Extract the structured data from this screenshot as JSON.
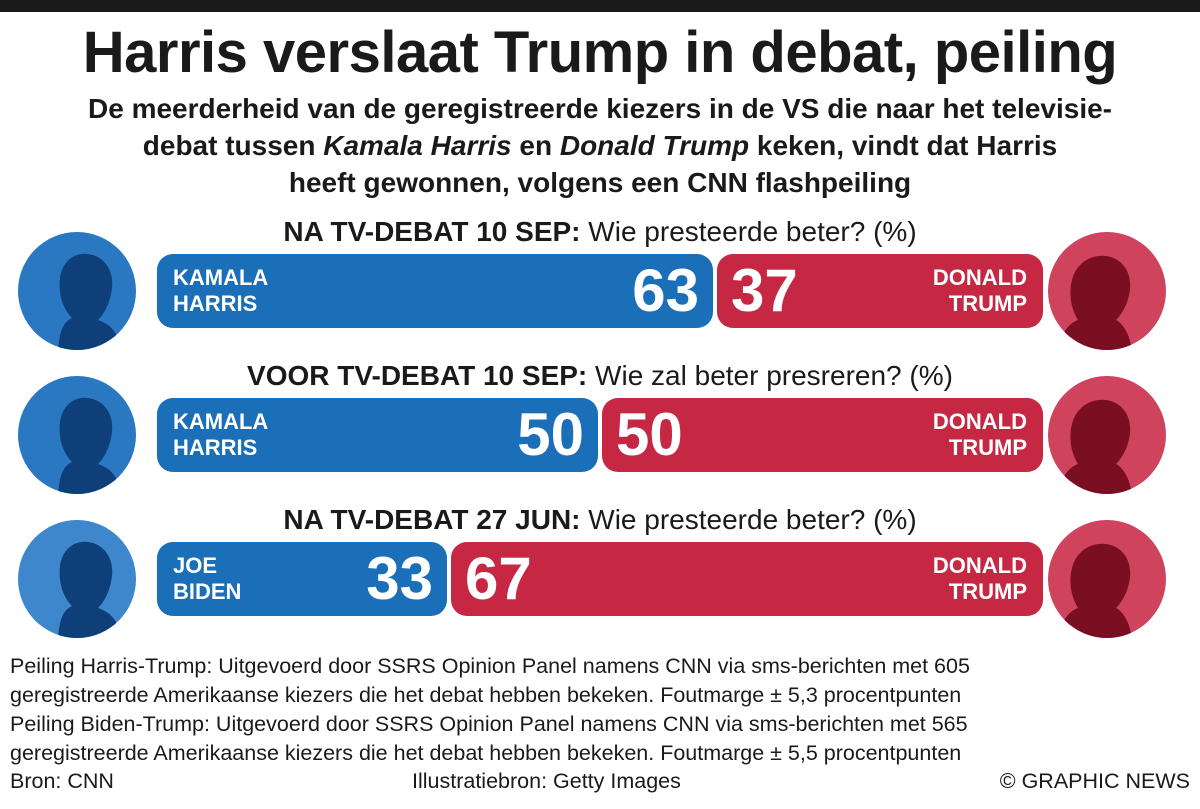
{
  "header": {
    "title": "Harris verslaat Trump in debat, peiling",
    "subtitle_line1": "De meerderheid van de geregistreerde kiezers in de VS die naar het televisie-",
    "subtitle_line2_a": "debat tussen ",
    "subtitle_line2_b": "Kamala Harris",
    "subtitle_line2_c": " en ",
    "subtitle_line2_d": "Donald Trump",
    "subtitle_line2_e": " keken, vindt dat Harris",
    "subtitle_line3": "heeft gewonnen, volgens een CNN flashpeiling"
  },
  "colors": {
    "democrat": "#1b6fb8",
    "republican": "#c62844",
    "text": "#1a1a1a"
  },
  "chart_data": {
    "type": "bar",
    "stacked": true,
    "orientation": "horizontal",
    "unit": "%",
    "xlim": [
      0,
      100
    ],
    "panels": [
      {
        "question_bold": "NA TV-DEBAT 10 SEP:",
        "question_text": " Wie presteerde beter? (%)",
        "left_name": "KAMALA\nHARRIS",
        "left_value": 63,
        "right_name": "DONALD\nTRUMP",
        "right_value": 37,
        "left_icon": "harris-portrait-icon",
        "right_icon": "trump-portrait-icon"
      },
      {
        "question_bold": "VOOR TV-DEBAT 10 SEP:",
        "question_text": " Wie zal beter presreren? (%)",
        "left_name": "KAMALA\nHARRIS",
        "left_value": 50,
        "right_name": "DONALD\nTRUMP",
        "right_value": 50,
        "left_icon": "harris-portrait-icon",
        "right_icon": "trump-portrait-icon"
      },
      {
        "question_bold": "NA TV-DEBAT 27 JUN:",
        "question_text": " Wie presteerde beter? (%)",
        "left_name": "JOE\nBIDEN",
        "left_value": 33,
        "right_name": "DONALD\nTRUMP",
        "right_value": 67,
        "left_icon": "biden-portrait-icon",
        "right_icon": "trump-portrait-icon"
      }
    ]
  },
  "footnotes": [
    "Peiling Harris-Trump: Uitgevoerd door SSRS Opinion Panel namens CNN via sms-berichten met 605",
    "geregistreerde Amerikaanse kiezers die het debat hebben bekeken. Foutmarge ± 5,3 procentpunten",
    "Peiling Biden-Trump: Uitgevoerd door SSRS Opinion Panel namens CNN via sms-berichten met 565",
    "geregistreerde Amerikaanse kiezers die het debat hebben bekeken. Foutmarge ± 5,5 procentpunten"
  ],
  "credits": {
    "source": "Bron: CNN",
    "illustration": "Illustratiebron: Getty Images",
    "copyright": "© GRAPHIC NEWS"
  }
}
